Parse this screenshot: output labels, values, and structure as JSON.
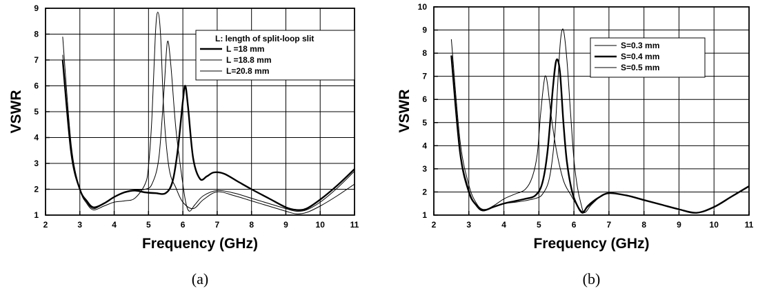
{
  "chart_data": [
    {
      "type": "line",
      "panel": "a",
      "caption": "(a)",
      "xlabel": "Frequency (GHz)",
      "ylabel": "VSWR",
      "xlim": [
        2,
        11
      ],
      "ylim": [
        1,
        9
      ],
      "xticks": [
        "2",
        "3",
        "4",
        "5",
        "6",
        "7",
        "8",
        "9",
        "10",
        "11"
      ],
      "yticks": [
        "1",
        "2",
        "3",
        "4",
        "5",
        "6",
        "7",
        "8",
        "9"
      ],
      "grid": true,
      "legend_position": "top-right",
      "legend_title": "L: length of split-loop slit",
      "series": [
        {
          "name": "L =18 mm",
          "style": "bold",
          "x": [
            2.5,
            2.75,
            3.0,
            3.2,
            3.4,
            3.7,
            4.0,
            4.3,
            4.6,
            4.9,
            5.2,
            5.5,
            5.7,
            5.85,
            6.0,
            6.07,
            6.15,
            6.3,
            6.5,
            6.7,
            6.9,
            7.2,
            7.6,
            8.0,
            8.5,
            9.0,
            9.3,
            9.6,
            10.0,
            10.5,
            11.0
          ],
          "y": [
            7.0,
            3.4,
            2.0,
            1.55,
            1.3,
            1.45,
            1.7,
            1.88,
            1.95,
            1.88,
            1.85,
            1.85,
            2.3,
            3.5,
            5.4,
            6.0,
            5.2,
            3.2,
            2.4,
            2.5,
            2.65,
            2.6,
            2.3,
            2.0,
            1.65,
            1.3,
            1.2,
            1.25,
            1.6,
            2.15,
            2.78
          ]
        },
        {
          "name": "L =18.8 mm",
          "style": "thin",
          "x": [
            2.5,
            2.75,
            3.0,
            3.2,
            3.4,
            3.7,
            4.0,
            4.3,
            4.6,
            4.9,
            5.1,
            5.3,
            5.45,
            5.55,
            5.65,
            5.8,
            6.0,
            6.1,
            6.2,
            6.35,
            6.6,
            7.0,
            7.5,
            8.0,
            8.5,
            9.0,
            9.3,
            9.6,
            10.0,
            10.5,
            11.0
          ],
          "y": [
            7.2,
            3.4,
            2.0,
            1.5,
            1.25,
            1.45,
            1.7,
            1.9,
            1.97,
            2.0,
            2.2,
            3.2,
            5.8,
            7.7,
            6.8,
            4.3,
            2.2,
            1.4,
            1.15,
            1.4,
            1.75,
            1.95,
            1.85,
            1.65,
            1.45,
            1.25,
            1.15,
            1.2,
            1.5,
            2.05,
            2.7
          ]
        },
        {
          "name": "L=20.8 mm",
          "style": "thin",
          "x": [
            2.5,
            2.75,
            3.0,
            3.2,
            3.4,
            3.7,
            4.0,
            4.3,
            4.6,
            4.9,
            5.0,
            5.1,
            5.2,
            5.27,
            5.35,
            5.45,
            5.6,
            5.8,
            6.0,
            6.3,
            6.6,
            7.0,
            7.5,
            8.0,
            8.5,
            9.0,
            9.3,
            9.6,
            10.0,
            10.5,
            11.0
          ],
          "y": [
            7.9,
            3.7,
            2.0,
            1.45,
            1.2,
            1.35,
            1.5,
            1.55,
            1.65,
            2.2,
            2.9,
            4.8,
            8.0,
            8.85,
            8.0,
            4.9,
            2.8,
            2.05,
            1.5,
            1.25,
            1.6,
            1.9,
            1.75,
            1.55,
            1.35,
            1.15,
            1.05,
            1.1,
            1.35,
            1.75,
            2.2
          ]
        }
      ]
    },
    {
      "type": "line",
      "panel": "b",
      "caption": "(b)",
      "xlabel": "Frequency (GHz)",
      "ylabel": "VSWR",
      "xlim": [
        2,
        11
      ],
      "ylim": [
        1,
        10
      ],
      "xticks": [
        "2",
        "3",
        "4",
        "5",
        "6",
        "7",
        "8",
        "9",
        "10",
        "11"
      ],
      "yticks": [
        "1",
        "2",
        "3",
        "4",
        "5",
        "6",
        "7",
        "8",
        "9",
        "10"
      ],
      "grid": true,
      "legend_position": "top-right",
      "series": [
        {
          "name": "S=0.3 mm",
          "style": "thin",
          "x": [
            2.5,
            2.75,
            3.0,
            3.2,
            3.4,
            3.7,
            4.0,
            4.3,
            4.6,
            4.8,
            4.95,
            5.05,
            5.15,
            5.2,
            5.25,
            5.35,
            5.5,
            5.7,
            5.9,
            6.1,
            6.25,
            6.4,
            6.7,
            7.0,
            7.5,
            8.0,
            8.5,
            9.0,
            9.5,
            10.0,
            10.5,
            11.0
          ],
          "y": [
            7.8,
            3.8,
            2.1,
            1.45,
            1.2,
            1.4,
            1.7,
            1.9,
            2.1,
            2.6,
            3.6,
            5.4,
            6.8,
            7.0,
            6.6,
            5.3,
            3.8,
            2.5,
            1.9,
            1.4,
            1.15,
            1.35,
            1.75,
            1.95,
            1.85,
            1.65,
            1.45,
            1.25,
            1.1,
            1.35,
            1.8,
            2.25
          ]
        },
        {
          "name": "S=0.4 mm",
          "style": "bold",
          "x": [
            2.5,
            2.75,
            3.0,
            3.2,
            3.4,
            3.7,
            4.0,
            4.3,
            4.6,
            4.9,
            5.1,
            5.25,
            5.4,
            5.5,
            5.6,
            5.7,
            5.8,
            5.95,
            6.1,
            6.25,
            6.4,
            6.7,
            7.0,
            7.5,
            8.0,
            8.5,
            9.0,
            9.5,
            10.0,
            10.5,
            11.0
          ],
          "y": [
            7.9,
            3.7,
            2.0,
            1.45,
            1.2,
            1.35,
            1.5,
            1.6,
            1.7,
            1.85,
            2.4,
            3.8,
            6.5,
            7.7,
            7.2,
            5.0,
            3.3,
            2.0,
            1.4,
            1.1,
            1.4,
            1.75,
            1.95,
            1.85,
            1.65,
            1.45,
            1.25,
            1.1,
            1.35,
            1.8,
            2.25
          ]
        },
        {
          "name": "S=0.5 mm",
          "style": "thin",
          "x": [
            2.5,
            2.75,
            3.0,
            3.2,
            3.4,
            3.7,
            4.0,
            4.3,
            4.6,
            4.9,
            5.1,
            5.3,
            5.45,
            5.55,
            5.62,
            5.7,
            5.8,
            5.9,
            6.0,
            6.1,
            6.2,
            6.3,
            6.5,
            6.8,
            7.0,
            7.5,
            8.0,
            8.5,
            9.0,
            9.5,
            10.0,
            10.5,
            11.0
          ],
          "y": [
            8.6,
            4.2,
            2.3,
            1.55,
            1.25,
            1.35,
            1.5,
            1.55,
            1.62,
            1.72,
            1.9,
            2.6,
            4.4,
            7.0,
            8.6,
            9.0,
            7.7,
            5.5,
            3.4,
            2.2,
            1.5,
            1.1,
            1.45,
            1.85,
            1.95,
            1.85,
            1.65,
            1.45,
            1.25,
            1.1,
            1.35,
            1.8,
            2.25
          ]
        }
      ]
    }
  ]
}
